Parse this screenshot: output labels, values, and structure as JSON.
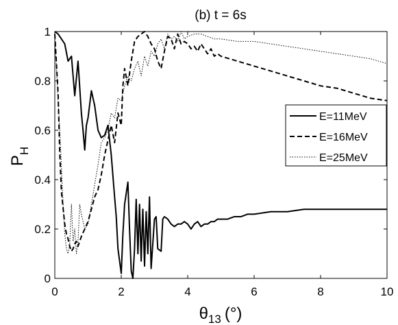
{
  "chart_data": {
    "type": "line",
    "title": "(b) t = 6s",
    "xlabel": {
      "symbol": "θ",
      "subscript": "13",
      "unit": "(°)"
    },
    "ylabel": {
      "symbol": "P",
      "subscript": "H"
    },
    "xlim": [
      0,
      10
    ],
    "ylim": [
      0,
      1
    ],
    "xticks": [
      0,
      2,
      4,
      6,
      8,
      10
    ],
    "yticks": [
      0,
      0.2,
      0.4,
      0.6,
      0.8,
      1
    ],
    "xtick_labels": [
      "0",
      "2",
      "4",
      "6",
      "8",
      "10"
    ],
    "ytick_labels": [
      "0",
      "0.2",
      "0.4",
      "0.6",
      "0.8",
      "1"
    ],
    "grid": false,
    "legend_position": "right",
    "series": [
      {
        "name": "E=11MeV",
        "style": "solid",
        "color": "#000000",
        "x": [
          0,
          0.1,
          0.2,
          0.3,
          0.4,
          0.5,
          0.6,
          0.7,
          0.8,
          0.85,
          0.9,
          0.95,
          1.0,
          1.1,
          1.2,
          1.3,
          1.4,
          1.5,
          1.6,
          1.7,
          1.8,
          1.85,
          1.9,
          2.0,
          2.05,
          2.1,
          2.2,
          2.25,
          2.3,
          2.35,
          2.4,
          2.45,
          2.5,
          2.55,
          2.6,
          2.65,
          2.7,
          2.75,
          2.8,
          2.85,
          2.9,
          3.0,
          3.05,
          3.1,
          3.2,
          3.25,
          3.3,
          3.4,
          3.5,
          3.6,
          3.7,
          3.8,
          3.9,
          4.0,
          4.1,
          4.2,
          4.3,
          4.4,
          4.5,
          4.6,
          4.7,
          4.8,
          4.9,
          5.0,
          5.2,
          5.4,
          5.6,
          5.8,
          6.0,
          6.5,
          7.0,
          7.5,
          8.0,
          8.5,
          9.0,
          9.5,
          10.0
        ],
        "y": [
          1.0,
          0.99,
          0.97,
          0.95,
          0.88,
          0.9,
          0.74,
          0.88,
          0.67,
          0.6,
          0.52,
          0.62,
          0.65,
          0.76,
          0.7,
          0.6,
          0.57,
          0.58,
          0.62,
          0.5,
          0.33,
          0.25,
          0.12,
          0.02,
          0.18,
          0.3,
          0.39,
          0.2,
          0.03,
          0.0,
          0.12,
          0.32,
          0.1,
          0.3,
          0.07,
          0.28,
          0.05,
          0.27,
          0.1,
          0.33,
          0.04,
          0.24,
          0.25,
          0.12,
          0.11,
          0.24,
          0.25,
          0.24,
          0.22,
          0.21,
          0.22,
          0.22,
          0.23,
          0.22,
          0.2,
          0.22,
          0.23,
          0.21,
          0.22,
          0.22,
          0.23,
          0.23,
          0.24,
          0.24,
          0.24,
          0.25,
          0.25,
          0.26,
          0.26,
          0.27,
          0.27,
          0.28,
          0.28,
          0.28,
          0.28,
          0.28,
          0.28
        ]
      },
      {
        "name": "E=16MeV",
        "style": "dashed",
        "color": "#000000",
        "x": [
          0,
          0.1,
          0.15,
          0.2,
          0.3,
          0.35,
          0.4,
          0.45,
          0.5,
          0.55,
          0.6,
          0.65,
          0.7,
          0.8,
          0.9,
          1.0,
          1.1,
          1.2,
          1.3,
          1.4,
          1.5,
          1.6,
          1.7,
          1.8,
          1.9,
          2.0,
          2.05,
          2.1,
          2.2,
          2.3,
          2.4,
          2.5,
          2.6,
          2.7,
          2.8,
          2.9,
          3.0,
          3.1,
          3.2,
          3.3,
          3.4,
          3.5,
          3.6,
          3.7,
          3.8,
          3.9,
          4.0,
          4.1,
          4.2,
          4.3,
          4.4,
          4.5,
          4.6,
          4.7,
          4.8,
          4.9,
          5.0,
          5.5,
          6.0,
          6.5,
          7.0,
          7.5,
          8.0,
          8.5,
          9.0,
          9.5,
          10.0
        ],
        "y": [
          0.99,
          0.75,
          0.5,
          0.35,
          0.22,
          0.18,
          0.16,
          0.13,
          0.11,
          0.12,
          0.14,
          0.15,
          0.13,
          0.17,
          0.2,
          0.23,
          0.28,
          0.33,
          0.36,
          0.42,
          0.5,
          0.56,
          0.62,
          0.55,
          0.67,
          0.62,
          0.78,
          0.85,
          0.78,
          0.88,
          0.96,
          0.98,
          0.99,
          1.0,
          0.98,
          0.95,
          0.93,
          0.88,
          0.85,
          0.92,
          0.98,
          0.97,
          0.93,
          0.99,
          0.95,
          0.96,
          0.95,
          0.93,
          0.94,
          0.92,
          0.95,
          0.93,
          0.91,
          0.93,
          0.9,
          0.91,
          0.9,
          0.88,
          0.86,
          0.84,
          0.82,
          0.8,
          0.78,
          0.77,
          0.75,
          0.73,
          0.72
        ]
      },
      {
        "name": "E=25MeV",
        "style": "dotted",
        "color": "#000000",
        "x": [
          0,
          0.05,
          0.1,
          0.15,
          0.2,
          0.25,
          0.3,
          0.35,
          0.4,
          0.45,
          0.5,
          0.55,
          0.6,
          0.65,
          0.7,
          0.75,
          0.8,
          0.9,
          1.0,
          1.1,
          1.2,
          1.3,
          1.4,
          1.5,
          1.6,
          1.7,
          1.8,
          1.9,
          2.0,
          2.1,
          2.2,
          2.3,
          2.4,
          2.5,
          2.6,
          2.7,
          2.8,
          2.9,
          3.0,
          3.1,
          3.2,
          3.3,
          3.4,
          3.5,
          3.6,
          3.7,
          3.8,
          3.9,
          4.0,
          4.2,
          4.4,
          4.6,
          4.8,
          5.0,
          5.5,
          6.0,
          6.5,
          7.0,
          7.5,
          8.0,
          8.5,
          9.0,
          9.5,
          10.0
        ],
        "y": [
          0.98,
          0.85,
          0.72,
          0.6,
          0.45,
          0.3,
          0.18,
          0.12,
          0.1,
          0.14,
          0.3,
          0.15,
          0.2,
          0.1,
          0.15,
          0.3,
          0.26,
          0.2,
          0.22,
          0.3,
          0.38,
          0.46,
          0.55,
          0.57,
          0.6,
          0.67,
          0.65,
          0.73,
          0.72,
          0.78,
          0.82,
          0.8,
          0.85,
          0.88,
          0.82,
          0.9,
          0.86,
          0.92,
          0.9,
          0.95,
          0.97,
          0.93,
          0.99,
          0.97,
          0.98,
          0.96,
          1.0,
          0.97,
          0.98,
          0.99,
          0.99,
          0.98,
          0.97,
          0.97,
          0.96,
          0.96,
          0.95,
          0.94,
          0.93,
          0.92,
          0.91,
          0.9,
          0.89,
          0.87
        ]
      }
    ]
  }
}
